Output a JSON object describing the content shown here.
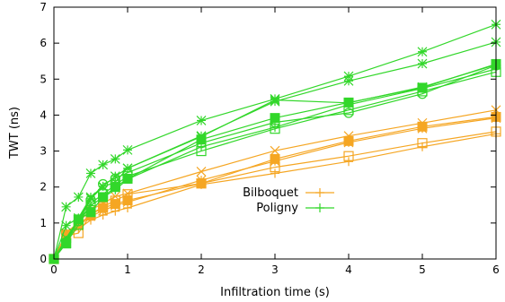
{
  "chart_data": {
    "type": "line",
    "title": "",
    "xlabel": "Infiltration time (s)",
    "ylabel": "TWT (ns)",
    "xlim": [
      0,
      6
    ],
    "ylim": [
      0,
      7
    ],
    "xticks": [
      0,
      1,
      2,
      3,
      4,
      5,
      6
    ],
    "yticks": [
      0,
      1,
      2,
      3,
      4,
      5,
      6,
      7
    ],
    "grid": false,
    "legend_position": "center",
    "legend": [
      {
        "label": "Bilboquet",
        "color": "#f5a623"
      },
      {
        "label": "Poligny",
        "color": "#32d72a"
      }
    ],
    "x": [
      0,
      0.166,
      0.333,
      0.5,
      0.666,
      0.833,
      1,
      2,
      3,
      4,
      5,
      6
    ],
    "series": [
      {
        "group": "Bilboquet",
        "color": "#f5a623",
        "marker": "plus",
        "values": [
          0,
          0.62,
          0.84,
          1.08,
          1.22,
          1.33,
          1.42,
          2.07,
          2.38,
          2.71,
          3.12,
          3.48
        ]
      },
      {
        "group": "Bilboquet",
        "color": "#f5a623",
        "marker": "x",
        "values": [
          0,
          0.72,
          1.02,
          1.36,
          1.55,
          1.74,
          1.82,
          2.43,
          3.01,
          3.42,
          3.78,
          4.14
        ]
      },
      {
        "group": "Bilboquet",
        "color": "#f5a623",
        "marker": "star",
        "values": [
          0,
          0.67,
          0.92,
          1.19,
          1.34,
          1.49,
          1.58,
          2.19,
          2.72,
          3.24,
          3.63,
          3.92
        ]
      },
      {
        "group": "Bilboquet",
        "color": "#f5a623",
        "marker": "square-open",
        "values": [
          0,
          0.64,
          0.72,
          1.23,
          1.46,
          1.62,
          1.8,
          2.1,
          2.55,
          2.86,
          3.22,
          3.54
        ]
      },
      {
        "group": "Bilboquet",
        "color": "#f5a623",
        "marker": "square-filled",
        "values": [
          0,
          0.68,
          0.95,
          1.24,
          1.42,
          1.53,
          1.63,
          2.1,
          2.78,
          3.28,
          3.68,
          3.95
        ]
      },
      {
        "group": "Poligny",
        "color": "#32d72a",
        "marker": "plus",
        "values": [
          0,
          0.52,
          1.08,
          1.48,
          1.72,
          1.92,
          2.22,
          3.12,
          3.66,
          4.29,
          4.74,
          5.28
        ]
      },
      {
        "group": "Poligny",
        "color": "#32d72a",
        "marker": "x",
        "values": [
          0,
          0.58,
          1.1,
          1.68,
          2.0,
          2.14,
          2.52,
          3.4,
          4.42,
          4.34,
          4.78,
          5.4
        ]
      },
      {
        "group": "Poligny",
        "color": "#32d72a",
        "marker": "star",
        "values": [
          0,
          1.45,
          1.72,
          2.38,
          2.62,
          2.78,
          3.03,
          3.85,
          4.45,
          5.08,
          5.76,
          6.52
        ]
      },
      {
        "group": "Poligny",
        "color": "#32d72a",
        "marker": "star",
        "values": [
          0,
          0.93,
          1.14,
          1.72,
          2.02,
          2.3,
          2.52,
          3.42,
          4.38,
          4.95,
          5.43,
          6.03
        ]
      },
      {
        "group": "Poligny",
        "color": "#32d72a",
        "marker": "circle-open",
        "values": [
          0,
          0.47,
          1.05,
          1.64,
          2.08,
          2.24,
          2.4,
          3.22,
          3.8,
          4.06,
          4.59,
          5.38
        ]
      },
      {
        "group": "Poligny",
        "color": "#32d72a",
        "marker": "square-open",
        "values": [
          0,
          0.44,
          0.95,
          1.55,
          1.8,
          2.06,
          2.3,
          3.0,
          3.62,
          4.14,
          4.66,
          5.2
        ]
      },
      {
        "group": "Poligny",
        "color": "#32d72a",
        "marker": "square-filled",
        "values": [
          0,
          0.43,
          1.1,
          1.3,
          1.72,
          2.0,
          2.23,
          3.32,
          3.92,
          4.35,
          4.76,
          5.42
        ]
      }
    ]
  }
}
